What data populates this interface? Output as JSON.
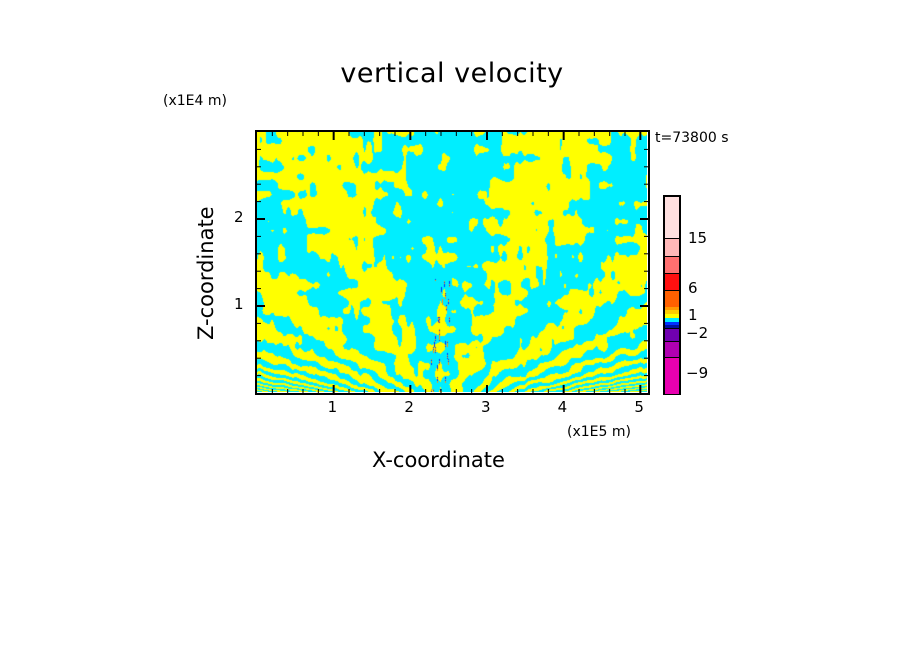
{
  "chart_data": {
    "type": "heatmap",
    "title": "vertical velocity",
    "xlabel": "X-coordinate",
    "ylabel": "Z-coordinate",
    "x_unit": "(x1E5 m)",
    "y_unit": "(x1E4 m)",
    "time_label": "t=73800 s",
    "xlim": [
      0,
      5.1
    ],
    "ylim": [
      0,
      3
    ],
    "x_ticks": [
      "1",
      "2",
      "3",
      "4",
      "5"
    ],
    "x_tick_values": [
      1,
      2,
      3,
      4,
      5
    ],
    "y_ticks": [
      "1",
      "2"
    ],
    "y_tick_values": [
      1,
      2
    ],
    "colorbar": {
      "tick_labels": [
        "15",
        "6",
        "1",
        "−2",
        "−9"
      ],
      "tick_values": [
        15,
        6,
        1,
        -2,
        -9
      ],
      "colors": [
        "#ffe0e0",
        "#ffb8b8",
        "#ff7070",
        "#ff1010",
        "#ff6000",
        "#ff9900",
        "#ffcc00",
        "#ffff00",
        "#00eeff",
        "#0030ff",
        "#0010a0",
        "#7000b0",
        "#b000b0",
        "#e800b0"
      ]
    }
  }
}
